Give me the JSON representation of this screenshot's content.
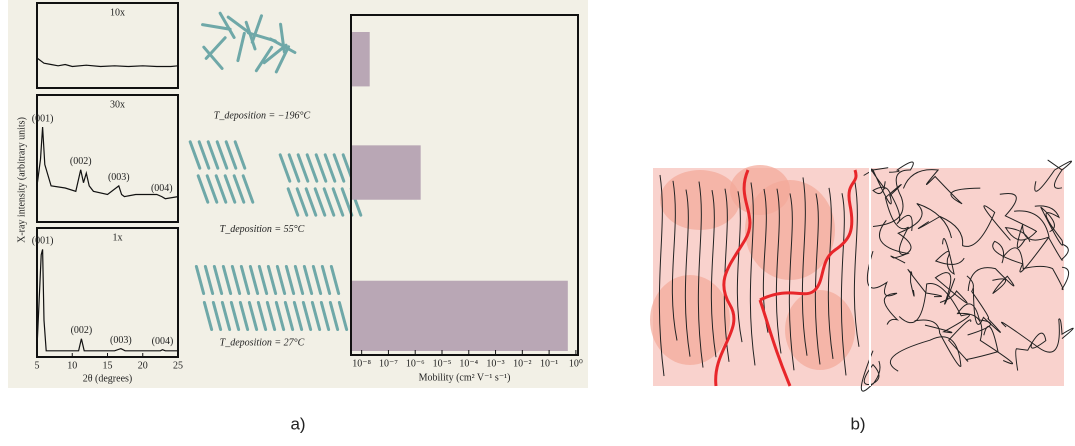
{
  "chart_data": [
    {
      "type": "line",
      "title": "10x",
      "ylabel": "X-ray intensity  (arbitrary units)",
      "xlim": [
        5,
        25
      ],
      "ylim": [
        0,
        1
      ],
      "color": "#111111",
      "x": [
        5,
        6,
        7,
        8,
        9,
        10,
        12,
        14,
        16,
        18,
        20,
        22,
        24,
        25
      ],
      "values": [
        0.4,
        0.32,
        0.3,
        0.28,
        0.3,
        0.27,
        0.29,
        0.27,
        0.28,
        0.27,
        0.28,
        0.27,
        0.27,
        0.28
      ],
      "annotations": []
    },
    {
      "type": "line",
      "title": "30x",
      "xlim": [
        5,
        25
      ],
      "ylim": [
        0,
        1
      ],
      "color": "#111111",
      "x": [
        5,
        5.5,
        5.8,
        6.1,
        7,
        9,
        10.5,
        11.2,
        11.6,
        12,
        12.4,
        13,
        15,
        16.6,
        17,
        17.4,
        19,
        22,
        22.7,
        23.2,
        25
      ],
      "values": [
        0.3,
        0.55,
        0.85,
        0.5,
        0.3,
        0.28,
        0.25,
        0.45,
        0.33,
        0.42,
        0.3,
        0.25,
        0.22,
        0.3,
        0.22,
        0.2,
        0.22,
        0.22,
        0.2,
        0.18,
        0.2
      ],
      "annotations": [
        {
          "text": "(001)",
          "x": 5.8
        },
        {
          "text": "(002)",
          "x": 11.2
        },
        {
          "text": "(003)",
          "x": 16.6
        },
        {
          "text": "(004)",
          "x": 22.7
        }
      ]
    },
    {
      "type": "line",
      "title": "1x",
      "xlabel": "2θ  (degrees)",
      "xlim": [
        5,
        25
      ],
      "ylim": [
        0,
        1
      ],
      "xticks": [
        5,
        10,
        15,
        20,
        25
      ],
      "color": "#111111",
      "x": [
        5,
        5.6,
        5.8,
        6.0,
        6.3,
        8,
        10.9,
        11.3,
        11.7,
        12.5,
        16,
        16.9,
        17.5,
        20,
        22.5,
        22.8,
        23.2,
        25
      ],
      "values": [
        0.05,
        0.9,
        0.95,
        0.3,
        0.02,
        0.02,
        0.02,
        0.13,
        0.02,
        0.02,
        0.02,
        0.04,
        0.02,
        0.02,
        0.02,
        0.03,
        0.02,
        0.02
      ],
      "annotations": [
        {
          "text": "(001)",
          "x": 5.8
        },
        {
          "text": "(002)",
          "x": 11.3
        },
        {
          "text": "(003)",
          "x": 16.9
        },
        {
          "text": "(004)",
          "x": 22.8
        }
      ]
    },
    {
      "type": "hbar",
      "xlabel": "Mobility  (cm² V⁻¹ s⁻¹)",
      "log_x": true,
      "color": "#b9a7b5",
      "categories": [
        "T_deposition = −196°C",
        "T_deposition = 55°C",
        "T_deposition = 27°C"
      ],
      "values": [
        2e-08,
        1.6e-06,
        0.5
      ],
      "xlim": [
        4e-09,
        1.2
      ],
      "xticks": [
        {
          "value": 1e-08,
          "label": "10⁻⁸"
        },
        {
          "value": 1e-07,
          "label": "10⁻⁷"
        },
        {
          "value": 1e-06,
          "label": "10⁻⁶"
        },
        {
          "value": 1e-05,
          "label": "10⁻⁵"
        },
        {
          "value": 0.0001,
          "label": "10⁻⁴"
        },
        {
          "value": 0.001,
          "label": "10⁻³"
        },
        {
          "value": 0.01,
          "label": "10⁻²"
        },
        {
          "value": 0.1,
          "label": "10⁻¹"
        },
        {
          "value": 1,
          "label": "10⁰"
        }
      ]
    }
  ],
  "captions": [
    "a)",
    "b)"
  ]
}
